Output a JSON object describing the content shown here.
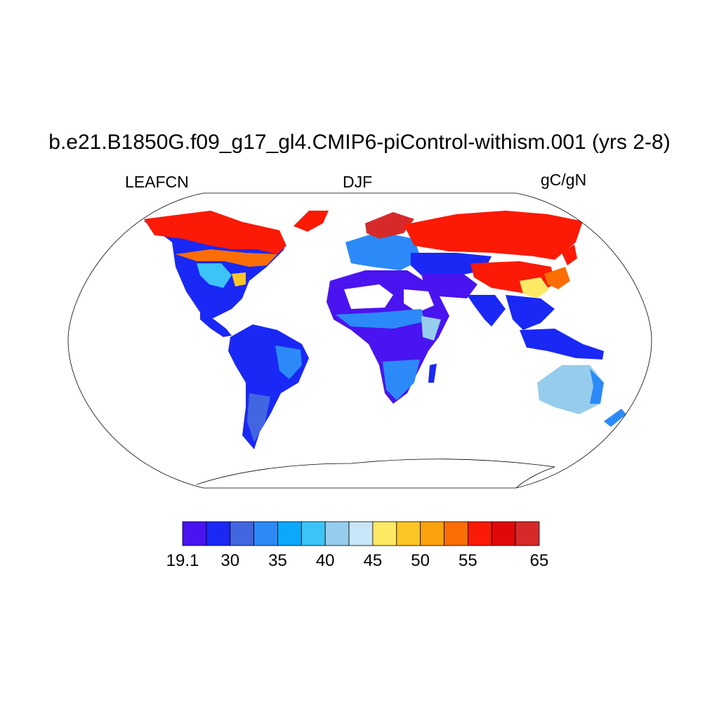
{
  "title": "b.e21.B1850G.f09_g17_gl4.CMIP6-piControl-withism.001 (yrs 2-8)",
  "variable": "LEAFCN",
  "season": "DJF",
  "units": "gC/gN",
  "colorbar": {
    "colors": [
      "#4a14f0",
      "#1a28f5",
      "#4266e0",
      "#2c8af8",
      "#0ba8fb",
      "#3cc4f8",
      "#96cdec",
      "#c8e6f8",
      "#fde964",
      "#fcc526",
      "#fba20c",
      "#fa6e05",
      "#fa1a05",
      "#e00808",
      "#d62a2a"
    ],
    "tick_labels": [
      {
        "label": "19.1",
        "index": 0
      },
      {
        "label": "30",
        "index": 2
      },
      {
        "label": "35",
        "index": 4
      },
      {
        "label": "40",
        "index": 6
      },
      {
        "label": "45",
        "index": 8
      },
      {
        "label": "50",
        "index": 10
      },
      {
        "label": "55",
        "index": 12
      },
      {
        "label": "65",
        "index": 15
      }
    ]
  }
}
